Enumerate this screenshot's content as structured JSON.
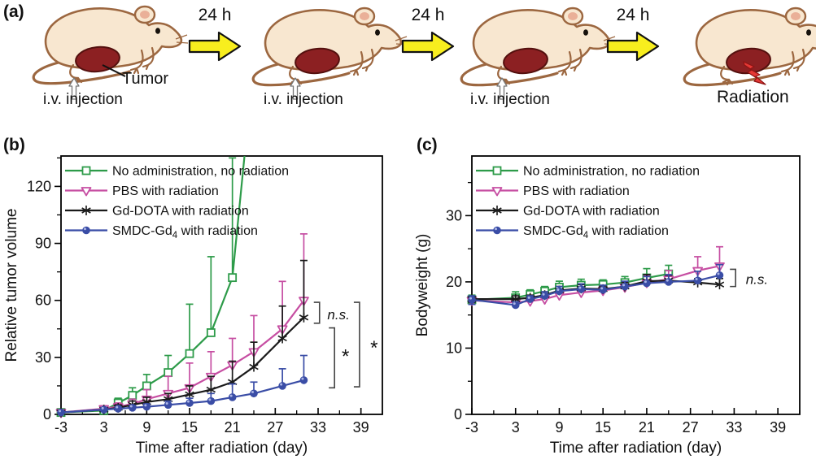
{
  "panel_a": {
    "label": "(a)",
    "tumor_label": "Tumor",
    "iv_label": "i.v. injection",
    "interval_label": "24 h",
    "radiation_label": "Radiation",
    "colors": {
      "mouse_body": "#f8e7d0",
      "mouse_outline": "#9c6740",
      "ear_inner": "#eab098",
      "tumor": "#8c2022",
      "tumor_outline": "#54100e",
      "arrow_yellow": "#f8ee1e",
      "bolt_red": "#e53935",
      "bolt_outline": "#8e1313",
      "iv_arrow_fill": "#ffffff",
      "iv_arrow_outline": "#777777"
    }
  },
  "chart_data": [
    {
      "id": "b",
      "panel_label": "(b)",
      "type": "line",
      "xlabel": "Time after radiation (day)",
      "ylabel": "Relative tumor volume",
      "xlim": [
        -3,
        42
      ],
      "ylim": [
        0,
        136
      ],
      "xticks": {
        "major": [
          -3,
          3,
          9,
          15,
          21,
          27,
          33,
          39
        ],
        "minor": [
          0,
          6,
          12,
          18,
          24,
          30,
          36,
          42
        ]
      },
      "yticks": {
        "major": [
          0,
          30,
          60,
          90,
          120
        ],
        "minor": [
          15,
          45,
          75,
          105,
          135
        ]
      },
      "legend_position": "top-left",
      "series": [
        {
          "name": "No administration, no radiation",
          "label_parts": [
            "No administration, no radiation"
          ],
          "color": "#2d9b49",
          "marker": "square-open",
          "x": [
            -3,
            3,
            5,
            7,
            9,
            12,
            15,
            18,
            21
          ],
          "y": [
            1,
            2,
            6,
            10,
            15,
            22,
            32,
            43,
            72
          ],
          "err_up": [
            0.5,
            1.5,
            2.5,
            4,
            6,
            9,
            26,
            40,
            63
          ],
          "extend": [
            [
              22.8,
              140
            ]
          ]
        },
        {
          "name": "PBS with radiation",
          "label_parts": [
            "PBS with radiation"
          ],
          "color": "#c64ea2",
          "marker": "triangle-down-open",
          "x": [
            -3,
            3,
            5,
            7,
            9,
            12,
            15,
            18,
            21,
            24,
            28,
            31
          ],
          "y": [
            1,
            3,
            4,
            5.5,
            8,
            11,
            14,
            20,
            26,
            33,
            45,
            60
          ],
          "err_up": [
            0.5,
            1.5,
            2,
            2.5,
            5,
            9,
            13,
            13,
            14,
            19,
            25,
            35
          ]
        },
        {
          "name": "Gd-DOTA with radiation",
          "label_parts": [
            "Gd-DOTA with radiation"
          ],
          "color": "#1a1a1a",
          "marker": "asterisk",
          "x": [
            -3,
            3,
            5,
            7,
            9,
            12,
            15,
            18,
            21,
            24,
            28,
            31
          ],
          "y": [
            1,
            2.5,
            3.5,
            5,
            6.5,
            8,
            10.5,
            13,
            17,
            25,
            40,
            51
          ],
          "err_up": [
            0.4,
            1,
            1.5,
            2,
            2.5,
            3,
            4.5,
            7,
            11,
            13,
            17,
            30
          ]
        },
        {
          "name": "SMDC-Gd4 with radiation",
          "label_parts": [
            "SMDC-Gd",
            "4",
            " with radiation"
          ],
          "color": "#3a4da6",
          "marker": "circle",
          "x": [
            -3,
            3,
            5,
            7,
            9,
            12,
            15,
            18,
            21,
            24,
            28,
            31
          ],
          "y": [
            1,
            2.5,
            3,
            3.5,
            4,
            5,
            6,
            7,
            9,
            11,
            15,
            18
          ],
          "err_up": [
            0.4,
            1,
            1,
            1.2,
            1.5,
            2,
            2.5,
            4,
            7,
            6,
            9,
            13
          ]
        }
      ],
      "annotations": [
        {
          "type": "bracket",
          "x": 33.2,
          "y_top": 59,
          "y_bottom": 48,
          "label": "n.s.",
          "italic": true,
          "label_x": 34.3,
          "label_y": 52.5,
          "font_size": 17
        },
        {
          "type": "bracket",
          "x": 35.3,
          "y_top": 45.5,
          "y_bottom": 14,
          "label": "*",
          "italic": false,
          "label_x": 36.3,
          "label_y": 31,
          "font_size": 24
        },
        {
          "type": "bracket",
          "x": 38.8,
          "y_top": 59,
          "y_bottom": 14.5,
          "label": "*",
          "italic": false,
          "label_x": 40.3,
          "label_y": 35.5,
          "font_size": 24
        }
      ]
    },
    {
      "id": "c",
      "panel_label": "(c)",
      "type": "line",
      "xlabel": "Time after radiation (day)",
      "ylabel": "Bodyweight (g)",
      "xlim": [
        -3,
        42
      ],
      "ylim": [
        0,
        39
      ],
      "xticks": {
        "major": [
          -3,
          3,
          9,
          15,
          21,
          27,
          33,
          39
        ],
        "minor": [
          0,
          6,
          12,
          18,
          24,
          30,
          36,
          42
        ]
      },
      "yticks": {
        "major": [
          0,
          10,
          20,
          30
        ],
        "minor": [
          5,
          15,
          25,
          35
        ]
      },
      "legend_position": "top-left",
      "series": [
        {
          "name": "No administration, no radiation",
          "label_parts": [
            "No administration, no radiation"
          ],
          "color": "#2d9b49",
          "marker": "square-open",
          "x": [
            -3,
            3,
            5,
            7,
            9,
            12,
            15,
            18,
            21,
            24
          ],
          "y": [
            17.3,
            17.6,
            18.1,
            18.6,
            19.2,
            19.5,
            19.6,
            19.9,
            20.6,
            21.2
          ],
          "err_up": [
            0.7,
            0.9,
            0.7,
            0.7,
            0.9,
            0.9,
            0.7,
            0.9,
            1.4,
            1.3
          ],
          "err_down": [
            0.6,
            0,
            0,
            0,
            0,
            0,
            0,
            0,
            0,
            0
          ]
        },
        {
          "name": "PBS with radiation",
          "label_parts": [
            "PBS with radiation"
          ],
          "color": "#c64ea2",
          "marker": "triangle-down-open",
          "x": [
            -3,
            3,
            5,
            7,
            9,
            12,
            15,
            18,
            21,
            24,
            28,
            31
          ],
          "y": [
            17.2,
            16.9,
            17.1,
            17.4,
            18.0,
            18.4,
            18.7,
            19.2,
            19.9,
            20.4,
            21.7,
            22.4
          ],
          "err_up": [
            0.5,
            0.4,
            0.4,
            0.5,
            0.5,
            0.6,
            0.6,
            0.8,
            1.1,
            1.3,
            2.1,
            2.9
          ],
          "err_down": [
            0.6,
            0,
            0,
            0,
            0,
            0,
            0,
            0,
            0,
            0,
            0,
            0
          ]
        },
        {
          "name": "Gd-DOTA with radiation",
          "label_parts": [
            "Gd-DOTA with radiation"
          ],
          "color": "#1a1a1a",
          "marker": "asterisk",
          "x": [
            -3,
            3,
            5,
            7,
            9,
            12,
            15,
            18,
            21,
            24,
            28,
            31
          ],
          "y": [
            17.4,
            17.4,
            17.6,
            18.0,
            18.7,
            19.0,
            18.9,
            19.3,
            20.1,
            20.2,
            19.9,
            19.6
          ],
          "err_up": [
            0.4,
            0.5,
            0.4,
            0.5,
            0.6,
            0.6,
            0.5,
            0.6,
            1.0,
            0.8,
            0.6,
            0.9
          ],
          "err_down": [
            0.5,
            0,
            0,
            0,
            0,
            0,
            0,
            0,
            0,
            0,
            0,
            0
          ]
        },
        {
          "name": "SMDC-Gd4 with radiation",
          "label_parts": [
            "SMDC-Gd",
            "4",
            " with radiation"
          ],
          "color": "#3a4da6",
          "marker": "circle",
          "x": [
            -3,
            3,
            5,
            7,
            9,
            12,
            15,
            18,
            21,
            24,
            28,
            31
          ],
          "y": [
            17.3,
            16.5,
            17.4,
            17.9,
            18.6,
            18.9,
            18.8,
            19.3,
            19.8,
            20.0,
            20.2,
            21.0
          ],
          "err_up": [
            0.6,
            0.5,
            0.5,
            0.6,
            0.7,
            0.8,
            0.7,
            0.8,
            1.0,
            1.1,
            1.4,
            1.6
          ],
          "err_down": [
            0.7,
            0,
            0,
            0,
            0,
            0,
            0,
            0,
            0,
            0,
            0,
            0
          ]
        }
      ],
      "annotations": [
        {
          "type": "bracket",
          "x": 33.2,
          "y_top": 21.9,
          "y_bottom": 19.3,
          "label": "n.s.",
          "italic": true,
          "label_x": 34.6,
          "label_y": 20.4,
          "font_size": 17
        }
      ]
    }
  ]
}
